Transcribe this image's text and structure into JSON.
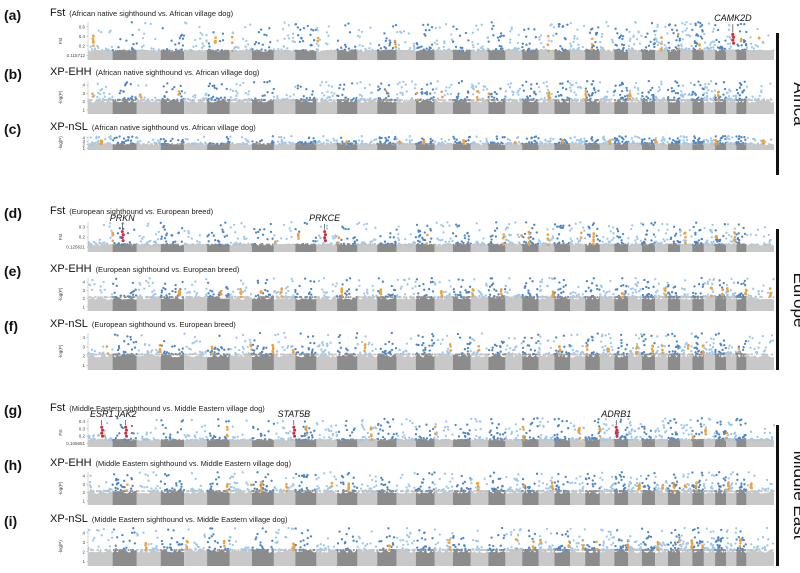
{
  "colors": {
    "chrom_even_light": "#c8c8c8",
    "chrom_odd_dark": "#8c8c8c",
    "sig_on_light": "#9ec8ec",
    "sig_on_dark": "#4d86c4",
    "candidate": "#f0a13a",
    "highlight": "#d7263d"
  },
  "chart_data": [
    {
      "letter": "(a)",
      "type": "scatter",
      "region": "Africa",
      "stat": "Fst",
      "title_main": "Fst",
      "title_sub": "(African native sighthound vs. African village dog)",
      "ylabel": "Fst",
      "yticks": [
        "0.6",
        "0.4",
        "0.2",
        "0.115712"
      ],
      "ylim": [
        0,
        0.6
      ],
      "genes": [
        {
          "name": "CAMK2D",
          "x": 0.94
        }
      ]
    },
    {
      "letter": "(b)",
      "type": "scatter",
      "region": "Africa",
      "stat": "XP-EHH",
      "title_main": "XP-EHH",
      "title_sub": "(African native sighthound vs. African village dog)",
      "ylabel": "-log(P)",
      "yticks": [
        "4",
        "3",
        "2",
        "1"
      ],
      "ylim": [
        0,
        4.5
      ],
      "genes": []
    },
    {
      "letter": "(c)",
      "type": "scatter",
      "region": "Africa",
      "stat": "XP-nSL",
      "title_main": "XP-nSL",
      "title_sub": "(African native sighthound vs. African village dog)",
      "ylabel": "-log(P)",
      "yticks": [
        "4",
        "3",
        "2",
        "1"
      ],
      "ylim": [
        0,
        4.5
      ],
      "genes": []
    },
    {
      "letter": "(d)",
      "type": "scatter",
      "region": "Europe",
      "stat": "Fst",
      "title_main": "Fst",
      "title_sub": "(European sighthound vs. European breed)",
      "ylabel": "Fst",
      "yticks": [
        "0.3",
        "0.2",
        "0.125621"
      ],
      "ylim": [
        0,
        0.35
      ],
      "genes": [
        {
          "name": "PRKN",
          "x": 0.05
        },
        {
          "name": "PRKCE",
          "x": 0.345
        }
      ]
    },
    {
      "letter": "(e)",
      "type": "scatter",
      "region": "Europe",
      "stat": "XP-EHH",
      "title_main": "XP-EHH",
      "title_sub": "(European sighthound vs. European breed)",
      "ylabel": "-log(P)",
      "yticks": [
        "4",
        "3",
        "2",
        "1"
      ],
      "ylim": [
        0,
        4.5
      ],
      "genes": []
    },
    {
      "letter": "(f)",
      "type": "scatter",
      "region": "Europe",
      "stat": "XP-nSL",
      "title_main": "XP-nSL",
      "title_sub": "(European sighthound vs. European breed)",
      "ylabel": "-log(P)",
      "yticks": [
        "4",
        "3",
        "2",
        "1"
      ],
      "ylim": [
        0,
        4.5
      ],
      "genes": []
    },
    {
      "letter": "(g)",
      "type": "scatter",
      "region": "Middle East",
      "stat": "Fst",
      "title_main": "Fst",
      "title_sub": "(Middle Eastern sighthound vs. Middle Eastern village dog)",
      "ylabel": "Fst",
      "yticks": [
        "0.4",
        "0.3",
        "0.2",
        "0.105651"
      ],
      "ylim": [
        0,
        0.45
      ],
      "genes": [
        {
          "name": "ESR1",
          "x": 0.02
        },
        {
          "name": "JAK2",
          "x": 0.055
        },
        {
          "name": "STAT5B",
          "x": 0.3
        },
        {
          "name": "ADRB1",
          "x": 0.77
        }
      ]
    },
    {
      "letter": "(h)",
      "type": "scatter",
      "region": "Middle East",
      "stat": "XP-EHH",
      "title_main": "XP-EHH",
      "title_sub": "(Middle Eastern sighthound vs. Middle Eastern village dog)",
      "ylabel": "-log(P)",
      "yticks": [
        "4",
        "3",
        "2",
        "1"
      ],
      "ylim": [
        0,
        4.5
      ],
      "genes": []
    },
    {
      "letter": "(i)",
      "type": "scatter",
      "region": "Middle East",
      "stat": "XP-nSL",
      "title_main": "XP-nSL",
      "title_sub": "(Middle Eastern sighthound vs. Middle Eastern village dog)",
      "ylabel": "-log(P)",
      "yticks": [
        "4",
        "3",
        "2",
        "1"
      ],
      "ylim": [
        0,
        4.5
      ],
      "genes": []
    }
  ],
  "regions": [
    {
      "label": "Africa",
      "panels": [
        "(a)",
        "(b)",
        "(c)"
      ]
    },
    {
      "label": "Europe",
      "panels": [
        "(d)",
        "(e)",
        "(f)"
      ]
    },
    {
      "label": "Middle East",
      "panels": [
        "(g)",
        "(h)",
        "(i)"
      ]
    }
  ]
}
